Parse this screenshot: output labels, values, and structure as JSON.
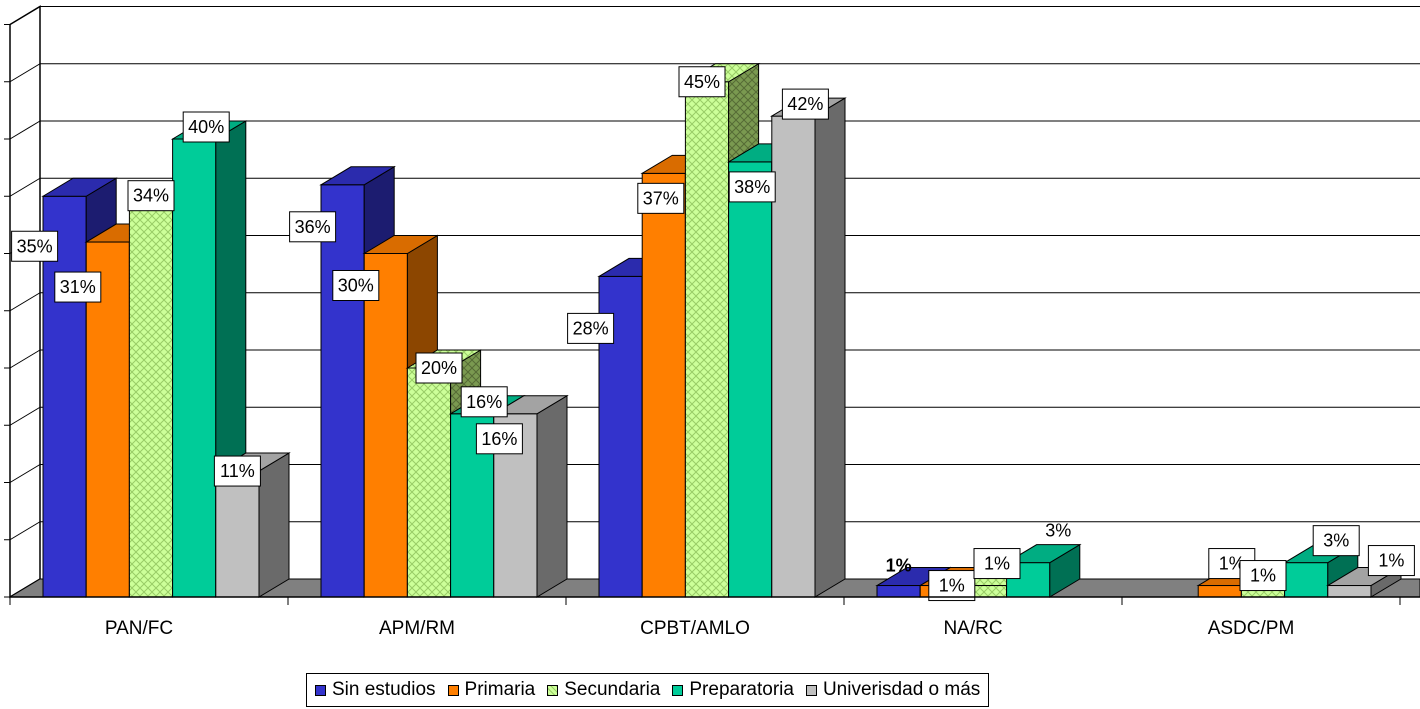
{
  "chart_data": {
    "type": "bar",
    "title": "",
    "xlabel": "",
    "ylabel": "",
    "ylim": [
      0,
      50
    ],
    "grid": true,
    "legend_position": "bottom",
    "categories": [
      "PAN/FC",
      "APM/RM",
      "CPBT/AMLO",
      "NA/RC",
      "ASDC/PM"
    ],
    "series": [
      {
        "name": "Sin estudios",
        "color": "#3333CC",
        "values": [
          35,
          36,
          28,
          1,
          null
        ],
        "labels": [
          "35%",
          "36%",
          "28%",
          "1%",
          ""
        ]
      },
      {
        "name": "Primaria",
        "color": "#FF7F00",
        "values": [
          31,
          30,
          37,
          1,
          1
        ],
        "labels": [
          "31%",
          "30%",
          "37%",
          "1%",
          "1%"
        ]
      },
      {
        "name": "Secundaria",
        "color": "#CCFF99",
        "values": [
          34,
          20,
          45,
          1,
          1
        ],
        "labels": [
          "34%",
          "20%",
          "45%",
          "1%",
          "1%"
        ]
      },
      {
        "name": "Preparatoria",
        "color": "#00CC99",
        "values": [
          40,
          16,
          38,
          3,
          3
        ],
        "labels": [
          "40%",
          "16%",
          "38%",
          "3%",
          "3%"
        ]
      },
      {
        "name": "Univerisdad o más",
        "color": "#C0C0C0",
        "values": [
          11,
          16,
          42,
          null,
          1
        ],
        "labels": [
          "11%",
          "16%",
          "42%",
          "",
          "1%"
        ]
      }
    ]
  }
}
